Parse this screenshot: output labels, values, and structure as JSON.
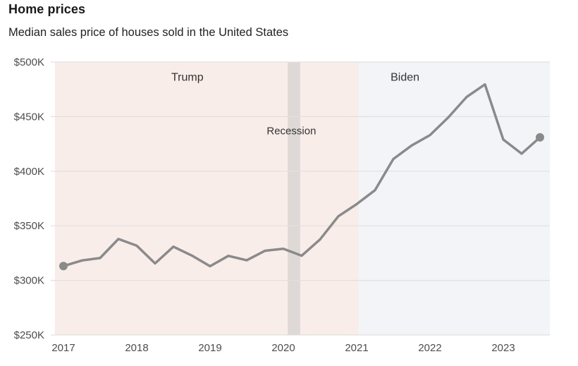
{
  "header": {
    "title": "Home prices",
    "subtitle": "Median sales price of houses sold in the United States"
  },
  "chart_data": {
    "type": "line",
    "title": "Home prices",
    "subtitle": "Median sales price of houses sold in the United States",
    "unit": "USD",
    "x": [
      "2017 Q1",
      "2017 Q2",
      "2017 Q3",
      "2017 Q4",
      "2018 Q1",
      "2018 Q2",
      "2018 Q3",
      "2018 Q4",
      "2019 Q1",
      "2019 Q2",
      "2019 Q3",
      "2019 Q4",
      "2020 Q1",
      "2020 Q2",
      "2020 Q3",
      "2020 Q4",
      "2021 Q1",
      "2021 Q2",
      "2021 Q3",
      "2021 Q4",
      "2022 Q1",
      "2022 Q2",
      "2022 Q3",
      "2022 Q4",
      "2023 Q1",
      "2023 Q2",
      "2023 Q3"
    ],
    "series": [
      {
        "name": "Median sales price",
        "color": "#8a8a8a",
        "values": [
          313100,
          318200,
          320500,
          337900,
          331800,
          315600,
          330900,
          322800,
          313000,
          322500,
          318400,
          327100,
          329000,
          322600,
          337500,
          358700,
          369800,
          382600,
          411200,
          423600,
          433100,
          449300,
          468000,
          479500,
          429000,
          416100,
          431000
        ]
      }
    ],
    "ylim": [
      250000,
      500000
    ],
    "yticks": [
      {
        "value": 500000,
        "label": "$500K"
      },
      {
        "value": 450000,
        "label": "$450K"
      },
      {
        "value": 400000,
        "label": "$400K"
      },
      {
        "value": 350000,
        "label": "$350K"
      },
      {
        "value": 300000,
        "label": "$300K"
      },
      {
        "value": 250000,
        "label": "$250K"
      }
    ],
    "xticks": [
      {
        "year": 2017,
        "label": "2017"
      },
      {
        "year": 2018,
        "label": "2018"
      },
      {
        "year": 2019,
        "label": "2019"
      },
      {
        "year": 2020,
        "label": "2020"
      },
      {
        "year": 2021,
        "label": "2021"
      },
      {
        "year": 2022,
        "label": "2022"
      },
      {
        "year": 2023,
        "label": "2023"
      }
    ],
    "regions": [
      {
        "id": "trump-era",
        "color": "#f9edea",
        "x_start_year": null,
        "x_end_year": 2021.03
      },
      {
        "id": "biden-era",
        "color": "#f2f4f8",
        "x_start_year": 2021.03,
        "x_end_year": null
      },
      {
        "id": "recession-band",
        "color": "#ded9d6",
        "x_start_year": 2020.06,
        "x_end_year": 2020.23
      }
    ],
    "annotations": [
      {
        "id": "trump",
        "label": "Trump",
        "x_year": 2018.69,
        "y_value": 486000,
        "small": false
      },
      {
        "id": "biden",
        "label": "Biden",
        "x_year": 2021.66,
        "y_value": 486000,
        "small": false
      },
      {
        "id": "recession",
        "label": "Recession",
        "x_year": 2020.11,
        "y_value": 437000,
        "small": true
      }
    ],
    "endpoint_markers": {
      "first": true,
      "last": true
    },
    "grid": "horizontal",
    "legend": "none",
    "colors": {
      "gridline": "#e2e0df",
      "line": "#8a8a8a",
      "tick_text": "#4d4d4d",
      "annotation_text": "#333333"
    }
  }
}
